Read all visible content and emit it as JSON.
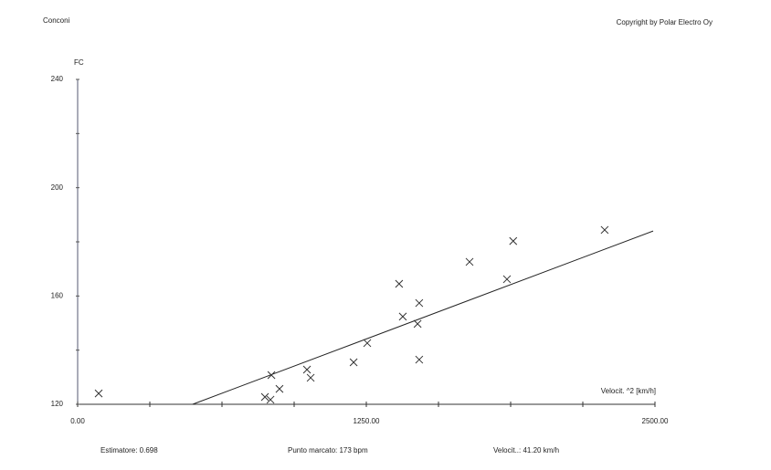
{
  "chart_data": {
    "type": "scatter",
    "title": "Conconi",
    "copyright": "Copyright by Polar Electro Oy",
    "y_label": "FC",
    "x_label": "Velocit. ^2 [km/h]",
    "x": [
      91,
      839,
      811,
      835,
      874,
      993,
      1009,
      1195,
      1254,
      1392,
      1408,
      1479,
      1472,
      1479,
      1697,
      1859,
      1886,
      2282
    ],
    "y": [
      124.0,
      130.8,
      122.7,
      121.7,
      125.7,
      132.8,
      129.8,
      135.5,
      142.6,
      164.5,
      152.4,
      157.4,
      149.7,
      136.5,
      172.6,
      166.2,
      180.3,
      184.4
    ],
    "color": "#333333",
    "fit_line": {
      "x": [
        498,
        2492
      ],
      "y": [
        120,
        184
      ],
      "color": "#222222"
    },
    "xlim": [
      0,
      2500
    ],
    "ylim": [
      120,
      240
    ],
    "xticks": [
      {
        "value": 0,
        "label": "0.00"
      },
      {
        "value": 1250,
        "label": "1250.00"
      },
      {
        "value": 2500,
        "label": "2500.00"
      }
    ],
    "xminor_ticks": [
      312.5,
      625,
      937.5,
      1562.5,
      1875,
      2187.5
    ],
    "yticks": [
      120,
      160,
      200,
      240
    ],
    "yminor_ticks": [
      140,
      180,
      220
    ],
    "footer": [
      "Estimatore: 0.698",
      "Punto marcato: 173 bpm",
      "Velocit..: 41.20 km/h"
    ]
  }
}
